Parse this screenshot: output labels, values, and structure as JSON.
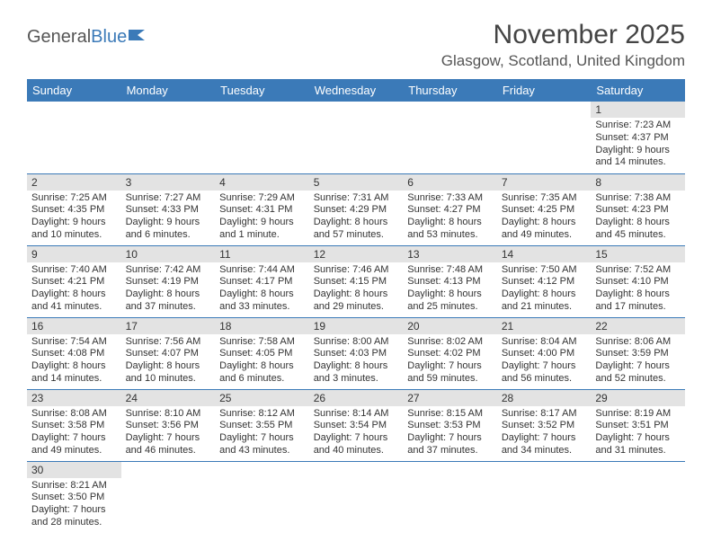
{
  "logo": {
    "part1": "General",
    "part2": "Blue"
  },
  "title": "November 2025",
  "location": "Glasgow, Scotland, United Kingdom",
  "header_bg": "#3b7ab8",
  "daynum_bg": "#e3e3e3",
  "row_border": "#3b7ab8",
  "days": [
    "Sunday",
    "Monday",
    "Tuesday",
    "Wednesday",
    "Thursday",
    "Friday",
    "Saturday"
  ],
  "weeks": [
    [
      null,
      null,
      null,
      null,
      null,
      null,
      {
        "n": "1",
        "sr": "Sunrise: 7:23 AM",
        "ss": "Sunset: 4:37 PM",
        "d1": "Daylight: 9 hours",
        "d2": "and 14 minutes."
      }
    ],
    [
      {
        "n": "2",
        "sr": "Sunrise: 7:25 AM",
        "ss": "Sunset: 4:35 PM",
        "d1": "Daylight: 9 hours",
        "d2": "and 10 minutes."
      },
      {
        "n": "3",
        "sr": "Sunrise: 7:27 AM",
        "ss": "Sunset: 4:33 PM",
        "d1": "Daylight: 9 hours",
        "d2": "and 6 minutes."
      },
      {
        "n": "4",
        "sr": "Sunrise: 7:29 AM",
        "ss": "Sunset: 4:31 PM",
        "d1": "Daylight: 9 hours",
        "d2": "and 1 minute."
      },
      {
        "n": "5",
        "sr": "Sunrise: 7:31 AM",
        "ss": "Sunset: 4:29 PM",
        "d1": "Daylight: 8 hours",
        "d2": "and 57 minutes."
      },
      {
        "n": "6",
        "sr": "Sunrise: 7:33 AM",
        "ss": "Sunset: 4:27 PM",
        "d1": "Daylight: 8 hours",
        "d2": "and 53 minutes."
      },
      {
        "n": "7",
        "sr": "Sunrise: 7:35 AM",
        "ss": "Sunset: 4:25 PM",
        "d1": "Daylight: 8 hours",
        "d2": "and 49 minutes."
      },
      {
        "n": "8",
        "sr": "Sunrise: 7:38 AM",
        "ss": "Sunset: 4:23 PM",
        "d1": "Daylight: 8 hours",
        "d2": "and 45 minutes."
      }
    ],
    [
      {
        "n": "9",
        "sr": "Sunrise: 7:40 AM",
        "ss": "Sunset: 4:21 PM",
        "d1": "Daylight: 8 hours",
        "d2": "and 41 minutes."
      },
      {
        "n": "10",
        "sr": "Sunrise: 7:42 AM",
        "ss": "Sunset: 4:19 PM",
        "d1": "Daylight: 8 hours",
        "d2": "and 37 minutes."
      },
      {
        "n": "11",
        "sr": "Sunrise: 7:44 AM",
        "ss": "Sunset: 4:17 PM",
        "d1": "Daylight: 8 hours",
        "d2": "and 33 minutes."
      },
      {
        "n": "12",
        "sr": "Sunrise: 7:46 AM",
        "ss": "Sunset: 4:15 PM",
        "d1": "Daylight: 8 hours",
        "d2": "and 29 minutes."
      },
      {
        "n": "13",
        "sr": "Sunrise: 7:48 AM",
        "ss": "Sunset: 4:13 PM",
        "d1": "Daylight: 8 hours",
        "d2": "and 25 minutes."
      },
      {
        "n": "14",
        "sr": "Sunrise: 7:50 AM",
        "ss": "Sunset: 4:12 PM",
        "d1": "Daylight: 8 hours",
        "d2": "and 21 minutes."
      },
      {
        "n": "15",
        "sr": "Sunrise: 7:52 AM",
        "ss": "Sunset: 4:10 PM",
        "d1": "Daylight: 8 hours",
        "d2": "and 17 minutes."
      }
    ],
    [
      {
        "n": "16",
        "sr": "Sunrise: 7:54 AM",
        "ss": "Sunset: 4:08 PM",
        "d1": "Daylight: 8 hours",
        "d2": "and 14 minutes."
      },
      {
        "n": "17",
        "sr": "Sunrise: 7:56 AM",
        "ss": "Sunset: 4:07 PM",
        "d1": "Daylight: 8 hours",
        "d2": "and 10 minutes."
      },
      {
        "n": "18",
        "sr": "Sunrise: 7:58 AM",
        "ss": "Sunset: 4:05 PM",
        "d1": "Daylight: 8 hours",
        "d2": "and 6 minutes."
      },
      {
        "n": "19",
        "sr": "Sunrise: 8:00 AM",
        "ss": "Sunset: 4:03 PM",
        "d1": "Daylight: 8 hours",
        "d2": "and 3 minutes."
      },
      {
        "n": "20",
        "sr": "Sunrise: 8:02 AM",
        "ss": "Sunset: 4:02 PM",
        "d1": "Daylight: 7 hours",
        "d2": "and 59 minutes."
      },
      {
        "n": "21",
        "sr": "Sunrise: 8:04 AM",
        "ss": "Sunset: 4:00 PM",
        "d1": "Daylight: 7 hours",
        "d2": "and 56 minutes."
      },
      {
        "n": "22",
        "sr": "Sunrise: 8:06 AM",
        "ss": "Sunset: 3:59 PM",
        "d1": "Daylight: 7 hours",
        "d2": "and 52 minutes."
      }
    ],
    [
      {
        "n": "23",
        "sr": "Sunrise: 8:08 AM",
        "ss": "Sunset: 3:58 PM",
        "d1": "Daylight: 7 hours",
        "d2": "and 49 minutes."
      },
      {
        "n": "24",
        "sr": "Sunrise: 8:10 AM",
        "ss": "Sunset: 3:56 PM",
        "d1": "Daylight: 7 hours",
        "d2": "and 46 minutes."
      },
      {
        "n": "25",
        "sr": "Sunrise: 8:12 AM",
        "ss": "Sunset: 3:55 PM",
        "d1": "Daylight: 7 hours",
        "d2": "and 43 minutes."
      },
      {
        "n": "26",
        "sr": "Sunrise: 8:14 AM",
        "ss": "Sunset: 3:54 PM",
        "d1": "Daylight: 7 hours",
        "d2": "and 40 minutes."
      },
      {
        "n": "27",
        "sr": "Sunrise: 8:15 AM",
        "ss": "Sunset: 3:53 PM",
        "d1": "Daylight: 7 hours",
        "d2": "and 37 minutes."
      },
      {
        "n": "28",
        "sr": "Sunrise: 8:17 AM",
        "ss": "Sunset: 3:52 PM",
        "d1": "Daylight: 7 hours",
        "d2": "and 34 minutes."
      },
      {
        "n": "29",
        "sr": "Sunrise: 8:19 AM",
        "ss": "Sunset: 3:51 PM",
        "d1": "Daylight: 7 hours",
        "d2": "and 31 minutes."
      }
    ],
    [
      {
        "n": "30",
        "sr": "Sunrise: 8:21 AM",
        "ss": "Sunset: 3:50 PM",
        "d1": "Daylight: 7 hours",
        "d2": "and 28 minutes."
      },
      null,
      null,
      null,
      null,
      null,
      null
    ]
  ]
}
